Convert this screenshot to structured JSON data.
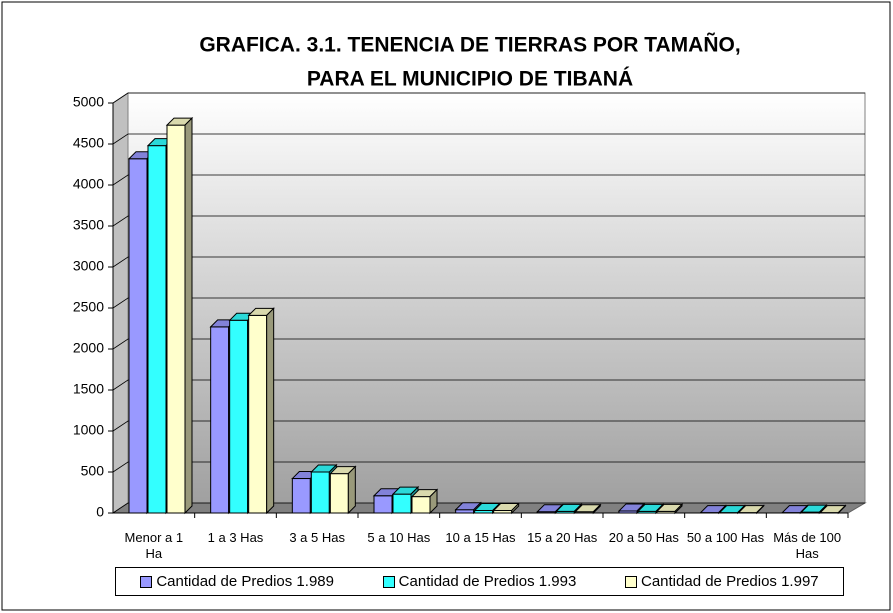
{
  "chart_data": {
    "type": "bar3d",
    "title": "GRAFICA. 3.1.    TENENCIA DE TIERRAS POR TAMAÑO,",
    "subtitle": "PARA EL MUNICIPIO DE TIBANÁ",
    "categories": [
      "Menor a 1 Ha",
      "1 a 3 Has",
      "3 a 5  Has",
      "5 a 10 Has",
      "10 a 15 Has",
      "15 a 20 Has",
      "20 a 50 Has",
      "50 a 100 Has",
      "Más de 100 Has"
    ],
    "series": [
      {
        "name": "Cantidad de Predios 1.989",
        "color": "#9999ff",
        "values": [
          4320,
          2270,
          420,
          210,
          40,
          15,
          25,
          5,
          5
        ]
      },
      {
        "name": "Cantidad de Predios 1.993",
        "color": "#33ffff",
        "values": [
          4480,
          2350,
          500,
          230,
          30,
          20,
          20,
          5,
          10
        ]
      },
      {
        "name": "Cantidad de Predios 1.997",
        "color": "#ffffcc",
        "values": [
          4730,
          2410,
          480,
          200,
          30,
          15,
          20,
          5,
          5
        ]
      }
    ],
    "ylim": [
      0,
      5000
    ],
    "yticks": [
      0,
      500,
      1000,
      1500,
      2000,
      2500,
      3000,
      3500,
      4000,
      4500,
      5000
    ],
    "grid": true
  }
}
